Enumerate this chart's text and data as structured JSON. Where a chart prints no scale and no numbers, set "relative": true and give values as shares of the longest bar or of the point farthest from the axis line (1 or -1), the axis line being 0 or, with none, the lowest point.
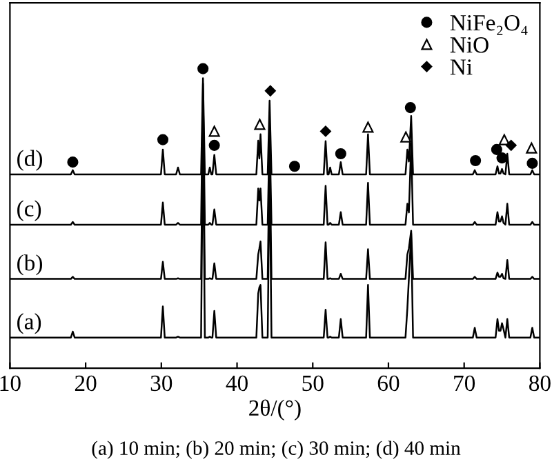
{
  "chart_data": {
    "type": "line",
    "relative": true,
    "xlabel": "2θ/(°)",
    "xlim": [
      10,
      80
    ],
    "xticks": [
      10,
      20,
      30,
      40,
      50,
      60,
      70,
      80
    ],
    "tick_labels": "x",
    "grid": false,
    "legend": "top right",
    "line_style": "solid",
    "annotations": [
      "(a) 10 min; (b) 20 min; (c) 30 min; (d) 40 min"
    ],
    "x": [
      10,
      18.05,
      18.3,
      18.55,
      29.95,
      30.2,
      30.45,
      31.95,
      32.2,
      32.45,
      35.25,
      35.5,
      35.75,
      36.2,
      36.4,
      36.6,
      36.75,
      37.0,
      37.25,
      42.55,
      42.8,
      42.95,
      43.1,
      43.35,
      44.05,
      44.3,
      44.55,
      51.45,
      51.7,
      51.95,
      52.1,
      52.3,
      52.5,
      53.45,
      53.7,
      53.95,
      57.05,
      57.3,
      57.55,
      62.25,
      62.5,
      62.7,
      63.0,
      63.25,
      71.15,
      71.4,
      71.65,
      74.15,
      74.4,
      74.6,
      74.8,
      75.0,
      75.2,
      75.45,
      75.7,
      75.95,
      78.75,
      79.0,
      79.25,
      80
    ],
    "series": [
      {
        "name": "(d)",
        "color": "#000000",
        "values": [
          0.647,
          0.647,
          0.661,
          0.647,
          0.647,
          0.73,
          0.647,
          0.647,
          0.67,
          0.647,
          0.647,
          0.968,
          0.647,
          0.647,
          0.67,
          0.647,
          0.647,
          0.712,
          0.647,
          0.647,
          0.76,
          0.7,
          0.781,
          0.647,
          0.647,
          0.893,
          0.647,
          0.647,
          0.758,
          0.647,
          0.647,
          0.67,
          0.647,
          0.647,
          0.688,
          0.647,
          0.647,
          0.781,
          0.647,
          0.647,
          0.73,
          0.69,
          0.842,
          0.647,
          0.647,
          0.661,
          0.647,
          0.647,
          0.674,
          0.65,
          0.65,
          0.665,
          0.65,
          0.647,
          0.716,
          0.647,
          0.647,
          0.661,
          0.647,
          0.647
        ]
      },
      {
        "name": "(c)",
        "color": "#000000",
        "values": [
          0.479,
          0.479,
          0.488,
          0.479,
          0.479,
          0.553,
          0.479,
          0.479,
          0.485,
          0.479,
          0.479,
          0.95,
          0.479,
          0.479,
          0.485,
          0.479,
          0.479,
          0.53,
          0.479,
          0.479,
          0.6,
          0.56,
          0.6,
          0.479,
          0.479,
          0.8,
          0.479,
          0.479,
          0.609,
          0.479,
          0.479,
          0.485,
          0.479,
          0.479,
          0.521,
          0.479,
          0.479,
          0.619,
          0.479,
          0.479,
          0.549,
          0.52,
          0.75,
          0.479,
          0.479,
          0.488,
          0.479,
          0.479,
          0.521,
          0.49,
          0.49,
          0.507,
          0.485,
          0.479,
          0.549,
          0.479,
          0.479,
          0.488,
          0.479,
          0.479
        ]
      },
      {
        "name": "(b)",
        "color": "#000000",
        "values": [
          0.298,
          0.298,
          0.305,
          0.298,
          0.298,
          0.355,
          0.298,
          0.298,
          0.3,
          0.298,
          0.298,
          0.85,
          0.298,
          0.298,
          0.3,
          0.298,
          0.298,
          0.35,
          0.298,
          0.298,
          0.38,
          0.4,
          0.423,
          0.298,
          0.298,
          0.75,
          0.298,
          0.298,
          0.42,
          0.298,
          0.298,
          0.3,
          0.298,
          0.298,
          0.315,
          0.298,
          0.298,
          0.397,
          0.298,
          0.298,
          0.38,
          0.4,
          0.459,
          0.298,
          0.298,
          0.305,
          0.298,
          0.298,
          0.319,
          0.305,
          0.305,
          0.315,
          0.3,
          0.298,
          0.361,
          0.298,
          0.298,
          0.305,
          0.298,
          0.298
        ]
      },
      {
        "name": "(a)",
        "color": "#000000",
        "values": [
          0.102,
          0.102,
          0.122,
          0.102,
          0.102,
          0.206,
          0.102,
          0.102,
          0.105,
          0.102,
          0.102,
          0.8,
          0.102,
          0.102,
          0.105,
          0.102,
          0.102,
          0.191,
          0.102,
          0.102,
          0.25,
          0.27,
          0.278,
          0.102,
          0.102,
          0.7,
          0.102,
          0.102,
          0.195,
          0.102,
          0.102,
          0.105,
          0.102,
          0.102,
          0.164,
          0.102,
          0.102,
          0.278,
          0.102,
          0.102,
          0.2,
          0.3,
          0.45,
          0.102,
          0.102,
          0.135,
          0.102,
          0.102,
          0.164,
          0.125,
          0.125,
          0.15,
          0.13,
          0.102,
          0.164,
          0.102,
          0.102,
          0.135,
          0.102,
          0.102
        ]
      },
      {
        "name": "NiFe₂O₄",
        "type": "scatter",
        "marker": "circle",
        "color": "#000000",
        "x": [
          18.3,
          30.2,
          35.5,
          37.0,
          47.6,
          53.7,
          62.9,
          71.5,
          74.3,
          75.0,
          79.0
        ],
        "values": [
          0.688,
          0.763,
          1.0,
          0.744,
          0.674,
          0.716,
          0.87,
          0.693,
          0.73,
          0.702,
          0.684
        ]
      },
      {
        "name": "NiO",
        "type": "scatter",
        "marker": "triangle",
        "color": "#000000",
        "x": [
          37.0,
          43.0,
          57.3,
          62.3,
          75.3,
          78.9
        ],
        "values": [
          0.791,
          0.814,
          0.805,
          0.772,
          0.763,
          0.735
        ]
      },
      {
        "name": "Ni",
        "type": "scatter",
        "marker": "diamond",
        "color": "#000000",
        "x": [
          44.4,
          51.7,
          76.2
        ],
        "values": [
          0.926,
          0.791,
          0.744
        ]
      }
    ]
  }
}
